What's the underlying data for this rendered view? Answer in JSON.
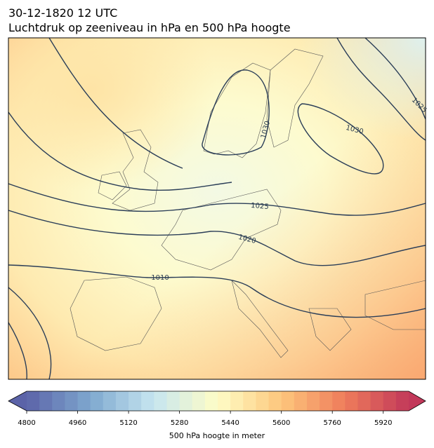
{
  "title": "30-12-1820 12 UTC",
  "subtitle": "Luchtdruk op zeeniveau in hPa en 500 hPa hoogte",
  "map": {
    "contour_labels": [
      {
        "level": 1030,
        "label": "1030"
      },
      {
        "level": 1030,
        "label": "1030"
      },
      {
        "level": 1025,
        "label": "1025"
      },
      {
        "level": 1025,
        "label": "1025"
      },
      {
        "level": 1020,
        "label": "1020"
      },
      {
        "level": 1010,
        "label": "1010"
      }
    ]
  },
  "colorbar": {
    "label": "500 hPa hoogte in meter",
    "range": [
      4800,
      6000
    ],
    "step": 40,
    "ticks": [
      4800,
      4960,
      5120,
      5280,
      5440,
      5600,
      5760,
      5920
    ],
    "colormap": [
      "#5b63a8",
      "#7ea8cf",
      "#c7e6f0",
      "#fefdc6",
      "#fdc67c",
      "#ee7c5b",
      "#c2385a"
    ]
  }
}
